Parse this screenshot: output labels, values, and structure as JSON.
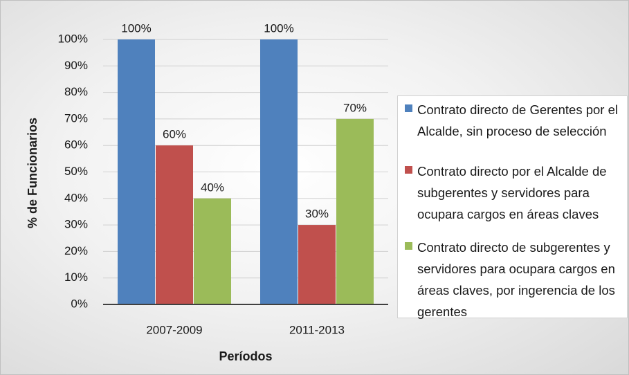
{
  "chart_data": {
    "type": "bar",
    "ylabel": "% de Funcionarios",
    "xlabel": "Períodos",
    "categories": [
      "2007-2009",
      "2011-2013"
    ],
    "series": [
      {
        "name": "Contrato directo de Gerentes por el Alcalde, sin proceso de selección",
        "color": "#4f81bd",
        "values": [
          100,
          100
        ],
        "value_labels": [
          "100%",
          "100%"
        ]
      },
      {
        "name": "Contrato directo  por el Alcalde de subgerentes y servidores para ocupara cargos en áreas claves",
        "color": "#c0504d",
        "values": [
          60,
          30
        ],
        "value_labels": [
          "60%",
          "30%"
        ]
      },
      {
        "name": "Contrato directo de subgerentes y servidores para ocupara cargos en áreas claves, por ingerencia de los gerentes",
        "color": "#9bbb59",
        "values": [
          40,
          70
        ],
        "value_labels": [
          "40%",
          "70%"
        ]
      }
    ],
    "ylim": [
      0,
      100
    ],
    "yticks": [
      {
        "value": 0,
        "label": "0%"
      },
      {
        "value": 10,
        "label": "10%"
      },
      {
        "value": 20,
        "label": "20%"
      },
      {
        "value": 30,
        "label": "30%"
      },
      {
        "value": 40,
        "label": "40%"
      },
      {
        "value": 50,
        "label": "50%"
      },
      {
        "value": 60,
        "label": "60%"
      },
      {
        "value": 70,
        "label": "70%"
      },
      {
        "value": 80,
        "label": "80%"
      },
      {
        "value": 90,
        "label": "90%"
      },
      {
        "value": 100,
        "label": "100%"
      }
    ],
    "grid": true,
    "legend": "right"
  }
}
